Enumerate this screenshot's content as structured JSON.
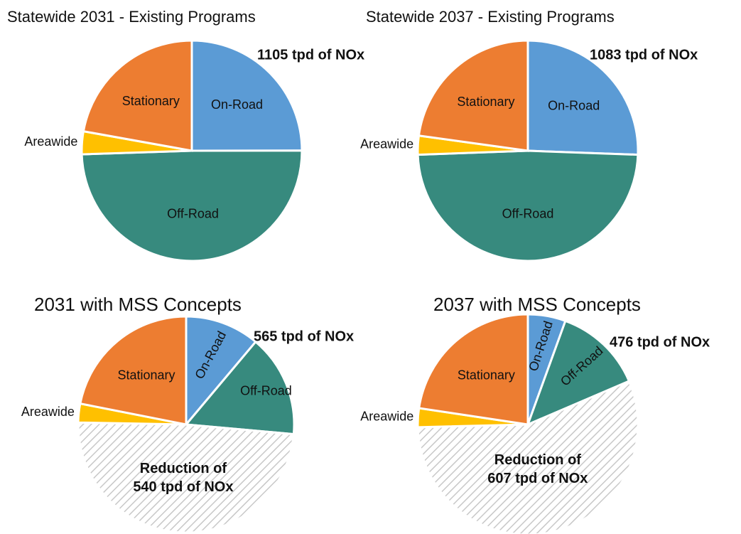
{
  "chart_data": [
    {
      "type": "pie",
      "title": "Statewide 2031 - Existing Programs",
      "annotation": "1105 tpd of NOx",
      "categories": [
        "On-Road",
        "Off-Road",
        "Areawide",
        "Stationary"
      ],
      "values": [
        276,
        547,
        37,
        245
      ],
      "colors": [
        "#5b9bd5",
        "#378a7e",
        "#ffc000",
        "#ed7d31"
      ],
      "hatched": [
        false,
        false,
        false,
        false
      ]
    },
    {
      "type": "pie",
      "title": "Statewide 2037 - Existing Programs",
      "annotation": "1083 tpd of NOx",
      "categories": [
        "On-Road",
        "Off-Road",
        "Areawide",
        "Stationary"
      ],
      "values": [
        277,
        529,
        30,
        247
      ],
      "colors": [
        "#5b9bd5",
        "#378a7e",
        "#ffc000",
        "#ed7d31"
      ],
      "hatched": [
        false,
        false,
        false,
        false
      ]
    },
    {
      "type": "pie",
      "title": "2031 with MSS Concepts",
      "annotation": "565 tpd of NOx",
      "categories": [
        "On-Road",
        "Off-Road",
        null,
        "Areawide",
        "Stationary"
      ],
      "values": [
        123,
        169,
        540,
        31,
        242
      ],
      "colors": [
        "#5b9bd5",
        "#378a7e",
        "#d9d9d9",
        "#ffc000",
        "#ed7d31"
      ],
      "hatched": [
        false,
        false,
        true,
        false,
        false
      ],
      "reduction_label": [
        "Reduction of",
        "540 tpd of NOx"
      ]
    },
    {
      "type": "pie",
      "title": "2037 with MSS Concepts",
      "annotation": "476 tpd of NOx",
      "categories": [
        "On-Road",
        "Off-Road",
        null,
        "Areawide",
        "Stationary"
      ],
      "values": [
        60,
        141,
        607,
        30,
        245
      ],
      "colors": [
        "#5b9bd5",
        "#378a7e",
        "#d9d9d9",
        "#ffc000",
        "#ed7d31"
      ],
      "hatched": [
        false,
        false,
        true,
        false,
        false
      ],
      "reduction_label": [
        "Reduction of",
        "607 tpd of NOx"
      ]
    }
  ]
}
